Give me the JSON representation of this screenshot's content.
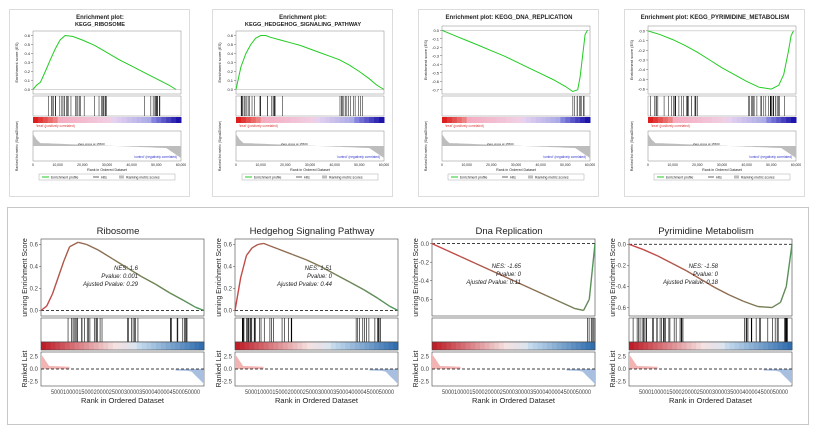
{
  "top_panels": [
    {
      "title_line1": "Enrichment plot:",
      "title_line2": "KEGG_RIBOSOME",
      "ylabel": "Enrichment score (ES)",
      "rank_ylabel": "Ranked list metric (Signal2Noise)",
      "xlabel": "Rank in Ordered Dataset",
      "yticks": [
        "0.6",
        "0.5",
        "0.4",
        "0.3",
        "0.2",
        "0.1",
        "0.0"
      ],
      "xticks": [
        "0",
        "10,000",
        "20,000",
        "30,000",
        "40,000",
        "50,000",
        "60,000"
      ],
      "pos_label": "'treat' (positively correlated)",
      "neg_label": "'control' (negatively correlated)",
      "zero_label": "Zero cross at 15500",
      "legend": [
        "Enrichment profile",
        "Hits",
        "Ranking metric scores"
      ]
    },
    {
      "title_line1": "Enrichment plot:",
      "title_line2": "KEGG_HEDGEHOG_SIGNALING_PATHWAY",
      "ylabel": "Enrichment score (ES)",
      "rank_ylabel": "Ranked list metric (Signal2Noise)",
      "xlabel": "Rank in Ordered Dataset",
      "yticks": [
        "0.6",
        "0.5",
        "0.4",
        "0.3",
        "0.2",
        "0.1",
        "0.0"
      ],
      "xticks": [
        "0",
        "10,000",
        "20,000",
        "30,000",
        "40,000",
        "50,000",
        "60,000"
      ],
      "pos_label": "'treat' (positively correlated)",
      "neg_label": "'control' (negatively correlated)",
      "zero_label": "Zero cross at 15500",
      "legend": [
        "Enrichment profile",
        "Hits",
        "Ranking metric scores"
      ]
    },
    {
      "title_line1": "Enrichment plot: KEGG_DNA_REPLICATION",
      "title_line2": "",
      "ylabel": "Enrichment score (ES)",
      "rank_ylabel": "Ranked list metric (Signal2Noise)",
      "xlabel": "Rank in Ordered Dataset",
      "yticks": [
        "0.0",
        "-0.1",
        "-0.2",
        "-0.3",
        "-0.4",
        "-0.5",
        "-0.6",
        "-0.7"
      ],
      "xticks": [
        "0",
        "10,000",
        "20,000",
        "30,000",
        "40,000",
        "50,000",
        "60,000"
      ],
      "pos_label": "'treat' (positively correlated)",
      "neg_label": "'control' (negatively correlated)",
      "zero_label": "Zero cross at 15500",
      "legend": [
        "Enrichment profile",
        "Hits",
        "Ranking metric scores"
      ]
    },
    {
      "title_line1": "Enrichment plot: KEGG_PYRIMIDINE_METABOLISM",
      "title_line2": "",
      "ylabel": "Enrichment score (ES)",
      "rank_ylabel": "Ranked list metric (Signal2Noise)",
      "xlabel": "Rank in Ordered Dataset",
      "yticks": [
        "0.0",
        "-0.1",
        "-0.2",
        "-0.3",
        "-0.4",
        "-0.5",
        "-0.6"
      ],
      "xticks": [
        "0",
        "10,000",
        "20,000",
        "30,000",
        "40,000",
        "50,000",
        "60,000"
      ],
      "pos_label": "'treat' (positively correlated)",
      "neg_label": "'control' (negatively correlated)",
      "zero_label": "Zero cross at 15500",
      "legend": [
        "Enrichment profile",
        "Hits",
        "Ranking metric scores"
      ]
    }
  ],
  "bottom_panels": [
    {
      "title": "Ribosome",
      "ylabel": "unning Enrichment Score",
      "rank_ylabel": "Ranked List",
      "xlabel": "Rank in Ordered Dataset",
      "nes": "NES: 1.6",
      "pvalue": "Pvalue: 0.001",
      "adj": "Ajusted Pvalue: 0.29",
      "yticks": [
        "0.6",
        "0.4",
        "0.2",
        "0.0"
      ],
      "rank_yticks": [
        "2.5",
        "0.0",
        "-2.5"
      ],
      "xticks_label": "5000100001500020000250003000035000400004500050000"
    },
    {
      "title": "Hedgehog Signaling Pathway",
      "ylabel": "unning Enrichment Score",
      "rank_ylabel": "Ranked List",
      "xlabel": "Rank in Ordered Dataset",
      "nes": "NES: 1.51",
      "pvalue": "Pvalue: 0",
      "adj": "Ajusted Pvalue: 0.44",
      "yticks": [
        "0.6",
        "0.4",
        "0.2",
        "0.0"
      ],
      "rank_yticks": [
        "2.5",
        "0.0",
        "-2.5"
      ],
      "xticks_label": "5000100001500020000250003000035000400004500050000"
    },
    {
      "title": "Dna Replication",
      "ylabel": "unning Enrichment Score",
      "rank_ylabel": "Ranked List",
      "xlabel": "Rank in Ordered Dataset",
      "nes": "NES: -1.65",
      "pvalue": "Pvalue: 0",
      "adj": "Ajusted Pvalue: 0.11",
      "yticks": [
        "0.0",
        "-0.2",
        "-0.4",
        "-0.6"
      ],
      "rank_yticks": [
        "2.5",
        "0.0",
        "-2.5"
      ],
      "xticks_label": "5000100001500020000250003000035000400004500050000"
    },
    {
      "title": "Pyrimidine Metabolism",
      "ylabel": "unning Enrichment Score",
      "rank_ylabel": "Ranked List",
      "xlabel": "Rank in Ordered Dataset",
      "nes": "NES: -1.58",
      "pvalue": "Pvalue: 0",
      "adj": "Ajusted Pvalue: 0.18",
      "yticks": [
        "0.0",
        "-0.2",
        "-0.4",
        "-0.6"
      ],
      "rank_yticks": [
        "2.5",
        "0.0",
        "-2.5"
      ],
      "xticks_label": "5000100001500020000250003000035000400004500050000"
    }
  ],
  "chart_data": [
    {
      "type": "line",
      "title": "Enrichment plot: KEGG_RIBOSOME",
      "xlabel": "Rank in Ordered Dataset",
      "ylabel": "Enrichment score (ES)",
      "ylim": [
        -0.05,
        0.65
      ],
      "xlim": [
        0,
        60000
      ],
      "x": [
        0,
        1500,
        3000,
        5000,
        7000,
        9000,
        11000,
        13000,
        16000,
        20000,
        25000,
        30000,
        35000,
        40000,
        45000,
        50000,
        55000,
        58000
      ],
      "y": [
        0.0,
        0.05,
        0.08,
        0.2,
        0.33,
        0.45,
        0.55,
        0.6,
        0.59,
        0.55,
        0.49,
        0.41,
        0.33,
        0.26,
        0.19,
        0.12,
        0.05,
        0.0
      ],
      "hits_ranges": [
        [
          6000,
          21000
        ],
        [
          24000,
          30000
        ],
        [
          44000,
          52000
        ]
      ],
      "color": "#22cc22",
      "grid": false
    },
    {
      "type": "line",
      "title": "Enrichment plot: KEGG_HEDGEHOG_SIGNALING_PATHWAY",
      "xlabel": "Rank in Ordered Dataset",
      "ylabel": "Enrichment score (ES)",
      "ylim": [
        -0.05,
        0.65
      ],
      "xlim": [
        0,
        60000
      ],
      "x": [
        0,
        2000,
        4000,
        6000,
        8000,
        10000,
        12000,
        14000,
        18000,
        22000,
        26000,
        30000,
        34000,
        38000,
        42000,
        46000,
        50000,
        54000,
        57000,
        60000
      ],
      "y": [
        0.0,
        0.25,
        0.4,
        0.5,
        0.57,
        0.6,
        0.6,
        0.58,
        0.55,
        0.52,
        0.49,
        0.45,
        0.41,
        0.37,
        0.33,
        0.27,
        0.2,
        0.12,
        0.05,
        0.0
      ],
      "hits_ranges": [
        [
          2000,
          19000
        ],
        [
          42000,
          52000
        ]
      ],
      "color": "#22cc22",
      "grid": false
    },
    {
      "type": "line",
      "title": "Enrichment plot: KEGG_DNA_REPLICATION",
      "xlabel": "Rank in Ordered Dataset",
      "ylabel": "Enrichment score (ES)",
      "ylim": [
        -0.75,
        0.05
      ],
      "xlim": [
        0,
        60000
      ],
      "x": [
        0,
        5000,
        10000,
        15000,
        20000,
        25000,
        30000,
        35000,
        40000,
        45000,
        50000,
        53000,
        55000,
        56000,
        57000,
        58000,
        59000
      ],
      "y": [
        0.0,
        -0.06,
        -0.12,
        -0.18,
        -0.24,
        -0.3,
        -0.37,
        -0.44,
        -0.51,
        -0.58,
        -0.66,
        -0.72,
        -0.7,
        -0.55,
        -0.3,
        -0.05,
        0.0
      ],
      "hits_ranges": [
        [
          53000,
          59000
        ]
      ],
      "color": "#22cc22",
      "grid": false
    },
    {
      "type": "line",
      "title": "Enrichment plot: KEGG_PYRIMIDINE_METABOLISM",
      "xlabel": "Rank in Ordered Dataset",
      "ylabel": "Enrichment score (ES)",
      "ylim": [
        -0.65,
        0.05
      ],
      "xlim": [
        0,
        60000
      ],
      "x": [
        0,
        5000,
        10000,
        15000,
        20000,
        25000,
        30000,
        35000,
        40000,
        45000,
        50000,
        53000,
        55000,
        57000,
        58000,
        59000
      ],
      "y": [
        0.0,
        -0.04,
        -0.09,
        -0.15,
        -0.22,
        -0.3,
        -0.38,
        -0.45,
        -0.52,
        -0.58,
        -0.6,
        -0.56,
        -0.45,
        -0.2,
        -0.05,
        0.0
      ],
      "hits_ranges": [
        [
          1000,
          20000
        ],
        [
          40000,
          58000
        ]
      ],
      "color": "#22cc22",
      "grid": false
    },
    {
      "type": "line",
      "title": "Ribosome",
      "xlabel": "Rank in Ordered Dataset",
      "ylabel": "unning Enrichment Score",
      "ylim": [
        -0.05,
        0.65
      ],
      "xlim": [
        0,
        57000
      ],
      "x": [
        0,
        2000,
        4000,
        6000,
        8000,
        10000,
        13000,
        16000,
        20000,
        25000,
        30000,
        35000,
        40000,
        45000,
        50000,
        54000,
        57000
      ],
      "y": [
        0.0,
        0.04,
        0.15,
        0.3,
        0.45,
        0.58,
        0.62,
        0.6,
        0.55,
        0.47,
        0.39,
        0.31,
        0.24,
        0.16,
        0.09,
        0.03,
        0.0
      ],
      "hits_ranges": [
        [
          8000,
          22000
        ],
        [
          30000,
          35000
        ],
        [
          45000,
          52000
        ]
      ],
      "annotations": [
        "NES: 1.6",
        "Pvalue: 0.001",
        "Ajusted Pvalue: 0.29"
      ],
      "color": "#2e8b57",
      "grid": false
    },
    {
      "type": "line",
      "title": "Hedgehog Signaling Pathway",
      "xlabel": "Rank in Ordered Dataset",
      "ylabel": "unning Enrichment Score",
      "ylim": [
        -0.05,
        0.65
      ],
      "xlim": [
        0,
        57000
      ],
      "x": [
        0,
        2000,
        4000,
        6000,
        8000,
        10000,
        12000,
        15000,
        20000,
        25000,
        30000,
        35000,
        40000,
        45000,
        50000,
        54000,
        57000
      ],
      "y": [
        0.0,
        0.3,
        0.5,
        0.57,
        0.6,
        0.61,
        0.59,
        0.56,
        0.51,
        0.46,
        0.4,
        0.33,
        0.26,
        0.19,
        0.11,
        0.04,
        0.0
      ],
      "hits_ranges": [
        [
          2000,
          20000
        ],
        [
          42000,
          52000
        ]
      ],
      "annotations": [
        "NES: 1.51",
        "Pvalue: 0",
        "Ajusted Pvalue: 0.44"
      ],
      "color": "#2e8b57",
      "grid": false
    },
    {
      "type": "line",
      "title": "Dna Replication",
      "xlabel": "Rank in Ordered Dataset",
      "ylabel": "unning Enrichment Score",
      "ylim": [
        -0.78,
        0.05
      ],
      "xlim": [
        0,
        57000
      ],
      "x": [
        0,
        5000,
        10000,
        15000,
        20000,
        25000,
        30000,
        35000,
        40000,
        45000,
        50000,
        53000,
        55000,
        56000,
        57000
      ],
      "y": [
        0.0,
        -0.07,
        -0.14,
        -0.21,
        -0.28,
        -0.35,
        -0.42,
        -0.49,
        -0.56,
        -0.63,
        -0.7,
        -0.72,
        -0.6,
        -0.3,
        0.0
      ],
      "hits_ranges": [
        [
          53000,
          57000
        ]
      ],
      "annotations": [
        "NES: -1.65",
        "Pvalue: 0",
        "Ajusted Pvalue: 0.11"
      ],
      "color": "#2e8b57",
      "grid": false
    },
    {
      "type": "line",
      "title": "Pyrimidine Metabolism",
      "xlabel": "Rank in Ordered Dataset",
      "ylabel": "unning Enrichment Score",
      "ylim": [
        -0.68,
        0.05
      ],
      "xlim": [
        0,
        57000
      ],
      "x": [
        0,
        5000,
        10000,
        15000,
        20000,
        25000,
        30000,
        35000,
        40000,
        45000,
        50000,
        53000,
        55000,
        56000,
        57000
      ],
      "y": [
        0.0,
        -0.05,
        -0.11,
        -0.18,
        -0.25,
        -0.33,
        -0.41,
        -0.48,
        -0.54,
        -0.59,
        -0.6,
        -0.55,
        -0.4,
        -0.2,
        0.0
      ],
      "hits_ranges": [
        [
          1000,
          20000
        ],
        [
          40000,
          56000
        ]
      ],
      "annotations": [
        "NES: -1.58",
        "Pvalue: 0",
        "Ajusted Pvalue: 0.18"
      ],
      "color": "#2e8b57",
      "grid": false
    }
  ]
}
